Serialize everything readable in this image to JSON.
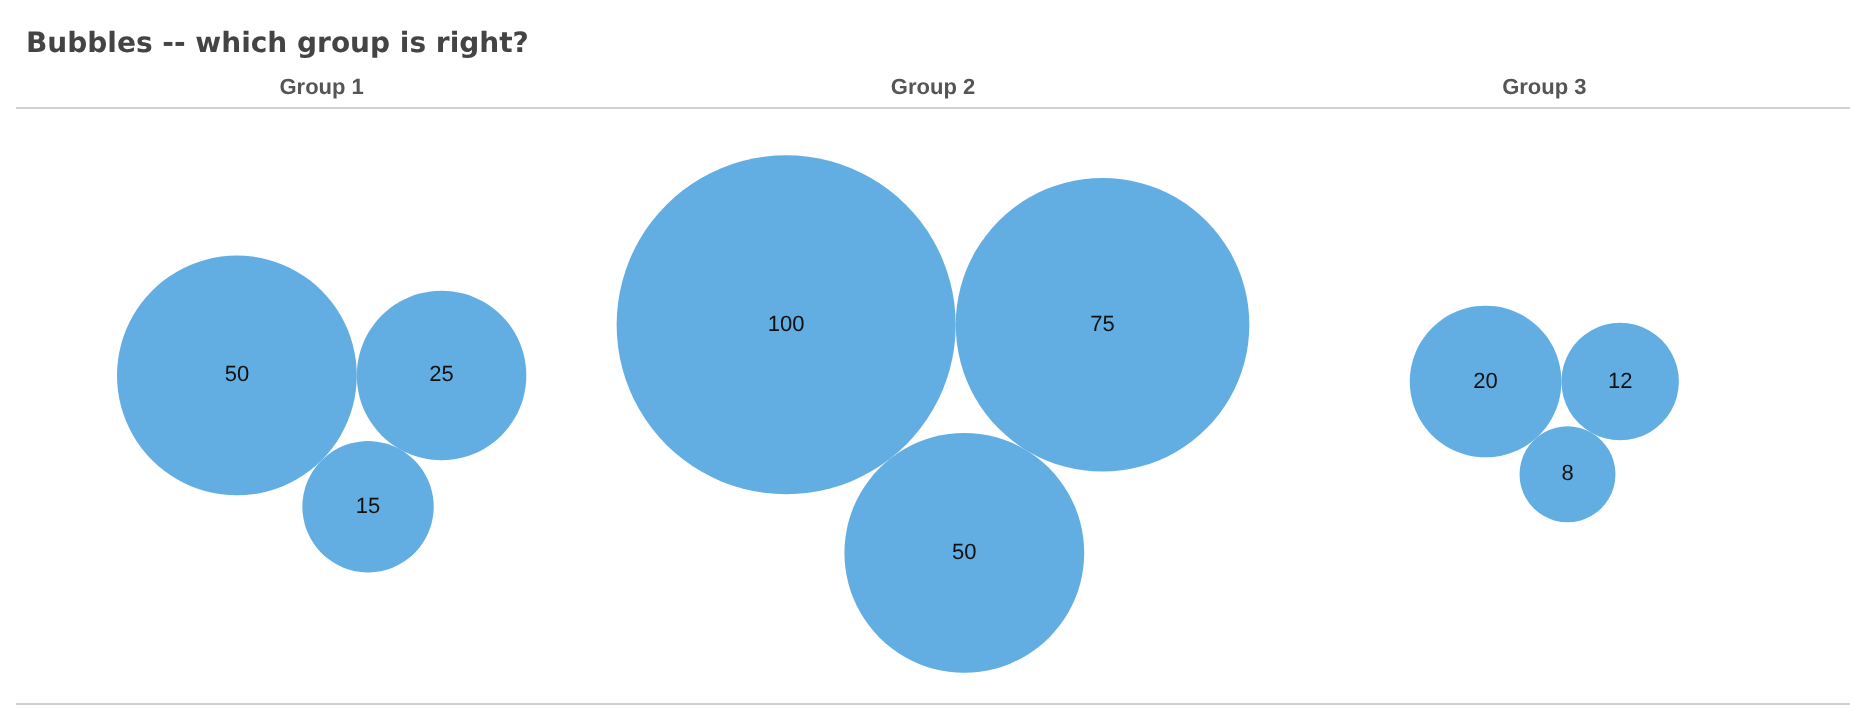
{
  "chart_data": {
    "type": "other",
    "title": "Bubbles -- which group is right?",
    "categories": [
      "Group 1",
      "Group 2",
      "Group 3"
    ],
    "series": [
      {
        "color": "#62aee2",
        "values": [
          50,
          100,
          20
        ]
      },
      {
        "color": "#62aee2",
        "values": [
          25,
          75,
          12
        ]
      },
      {
        "color": "#62aee2",
        "values": [
          15,
          50,
          8
        ]
      }
    ],
    "data_labels": true
  }
}
